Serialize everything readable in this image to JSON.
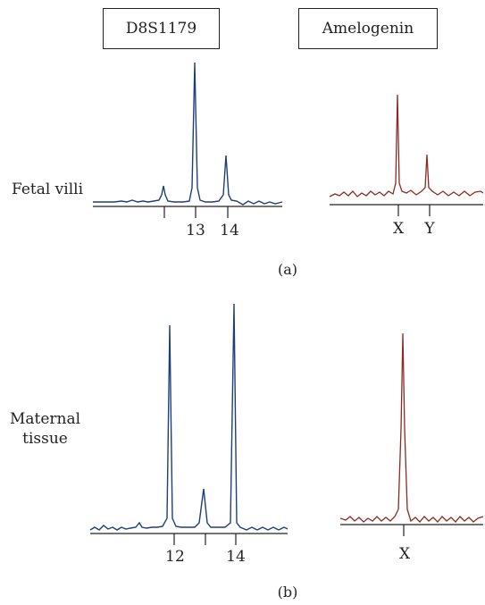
{
  "headers": {
    "left": "D8S1179",
    "right": "Amelogenin"
  },
  "rows": [
    {
      "label": "Fetal villi",
      "panel": "(a)",
      "str_ticks": [
        "",
        "13",
        "14"
      ],
      "amel_ticks": [
        "X",
        "Y"
      ]
    },
    {
      "label_line1": "Maternal",
      "label_line2": "tissue",
      "panel": "(b)",
      "str_ticks": [
        "12",
        "",
        "14"
      ],
      "amel_ticks": [
        "X"
      ]
    }
  ],
  "colors": {
    "str_trace": "#1f3f7a",
    "amel_trace": "#8b2a22",
    "axis": "#222222"
  }
}
